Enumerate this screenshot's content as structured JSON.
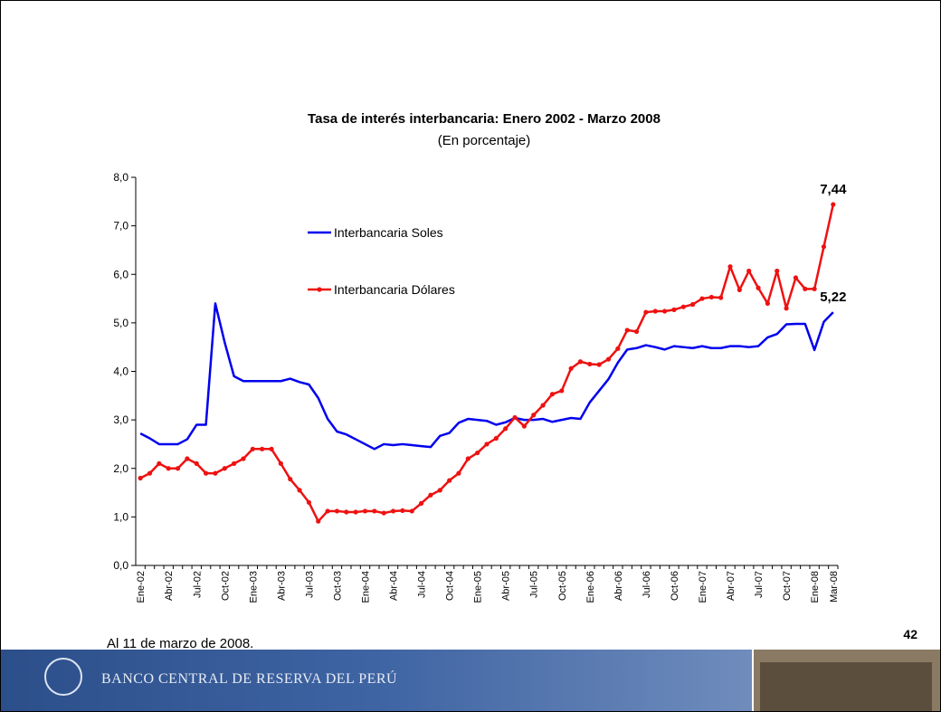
{
  "chart_data": {
    "type": "line",
    "title": "Tasa de interés interbancaria: Enero 2002 - Marzo 2008",
    "subtitle": "(En porcentaje)",
    "categories": [
      "Ene-02",
      null,
      null,
      "Abr-02",
      null,
      null,
      "Jul-02",
      null,
      null,
      "Oct-02",
      null,
      null,
      "Ene-03",
      null,
      null,
      "Abr-03",
      null,
      null,
      "Jul-03",
      null,
      null,
      "Oct-03",
      null,
      null,
      "Ene-04",
      null,
      null,
      "Abr-04",
      null,
      null,
      "Jul-04",
      null,
      null,
      "Oct-04",
      null,
      null,
      "Ene-05",
      null,
      null,
      "Abr-05",
      null,
      null,
      "Jul-05",
      null,
      null,
      "Oct-05",
      null,
      null,
      "Ene-06",
      null,
      null,
      "Abr-06",
      null,
      null,
      "Jul-06",
      null,
      null,
      "Oct-06",
      null,
      null,
      "Ene-07",
      null,
      null,
      "Abr-07",
      null,
      null,
      "Jul-07",
      null,
      null,
      "Oct-07",
      null,
      null,
      "Ene-08",
      null,
      "Mar-08"
    ],
    "series": [
      {
        "name": "Interbancaria Soles",
        "color": "#0000ee",
        "marker": false,
        "values": [
          2.72,
          2.62,
          2.5,
          2.5,
          2.5,
          2.6,
          2.9,
          2.9,
          5.4,
          4.6,
          3.9,
          3.8,
          3.8,
          3.8,
          3.8,
          3.8,
          3.85,
          3.78,
          3.73,
          3.45,
          3.02,
          2.76,
          2.7,
          2.6,
          2.5,
          2.4,
          2.5,
          2.48,
          2.5,
          2.48,
          2.46,
          2.44,
          2.67,
          2.73,
          2.94,
          3.02,
          3.0,
          2.98,
          2.9,
          2.95,
          3.04,
          3.0,
          3.0,
          3.02,
          2.96,
          3.0,
          3.04,
          3.02,
          3.36,
          3.6,
          3.84,
          4.18,
          4.45,
          4.48,
          4.54,
          4.5,
          4.45,
          4.52,
          4.5,
          4.48,
          4.52,
          4.48,
          4.48,
          4.52,
          4.52,
          4.5,
          4.52,
          4.7,
          4.77,
          4.97,
          4.98,
          4.98,
          4.44,
          5.02,
          5.22
        ],
        "value_labels": [
          null,
          null,
          null,
          null,
          null,
          null,
          null,
          null,
          null,
          null,
          null,
          null,
          null,
          null,
          null,
          null,
          null,
          null,
          null,
          null,
          null,
          null,
          null,
          null,
          null,
          null,
          null,
          null,
          null,
          null,
          null,
          null,
          null,
          null,
          null,
          null,
          null,
          null,
          null,
          null,
          null,
          null,
          null,
          null,
          null,
          null,
          null,
          null,
          null,
          null,
          null,
          null,
          null,
          null,
          null,
          null,
          null,
          null,
          null,
          null,
          null,
          null,
          null,
          null,
          null,
          null,
          null,
          null,
          null,
          null,
          null,
          null,
          null,
          null,
          "5,22"
        ]
      },
      {
        "name": "Interbancaria Dólares",
        "color": "#ee1111",
        "marker": true,
        "values": [
          1.8,
          1.9,
          2.1,
          2.0,
          2.0,
          2.2,
          2.1,
          1.9,
          1.9,
          2.0,
          2.1,
          2.2,
          2.4,
          2.4,
          2.4,
          2.1,
          1.78,
          1.55,
          1.3,
          0.91,
          1.12,
          1.12,
          1.1,
          1.1,
          1.12,
          1.12,
          1.08,
          1.12,
          1.13,
          1.12,
          1.28,
          1.45,
          1.55,
          1.75,
          1.9,
          2.2,
          2.32,
          2.5,
          2.62,
          2.82,
          3.05,
          2.87,
          3.1,
          3.3,
          3.53,
          3.6,
          4.06,
          4.2,
          4.15,
          4.14,
          4.25,
          4.47,
          4.85,
          4.82,
          5.22,
          5.24,
          5.24,
          5.27,
          5.33,
          5.38,
          5.5,
          5.53,
          5.52,
          6.16,
          5.68,
          6.07,
          5.72,
          5.4,
          6.07,
          5.3,
          5.93,
          5.7,
          5.7,
          6.57,
          7.44
        ],
        "value_labels": [
          null,
          null,
          null,
          null,
          null,
          null,
          null,
          null,
          null,
          null,
          null,
          null,
          null,
          null,
          null,
          null,
          null,
          null,
          null,
          null,
          null,
          null,
          null,
          null,
          null,
          null,
          null,
          null,
          null,
          null,
          null,
          null,
          null,
          null,
          null,
          null,
          null,
          null,
          null,
          null,
          null,
          null,
          null,
          null,
          null,
          null,
          null,
          null,
          null,
          null,
          null,
          null,
          null,
          null,
          null,
          null,
          null,
          null,
          null,
          null,
          null,
          null,
          null,
          null,
          null,
          null,
          null,
          null,
          null,
          null,
          null,
          null,
          null,
          null,
          "7,44"
        ]
      }
    ],
    "ylim": [
      0,
      8
    ],
    "yticks": [
      {
        "value": 0,
        "label": "0,0"
      },
      {
        "value": 1,
        "label": "1,0"
      },
      {
        "value": 2,
        "label": "2,0"
      },
      {
        "value": 3,
        "label": "3,0"
      },
      {
        "value": 4,
        "label": "4,0"
      },
      {
        "value": 5,
        "label": "5,0"
      },
      {
        "value": 6,
        "label": "6,0"
      },
      {
        "value": 7,
        "label": "7,0"
      },
      {
        "value": 8,
        "label": "8,0"
      }
    ],
    "grid": false,
    "legend": "upper left"
  },
  "slide": {
    "note": "Al 11 de marzo de 2008.",
    "page_number": "42",
    "banner": "BANCO CENTRAL DE RESERVA DEL PERÚ"
  }
}
